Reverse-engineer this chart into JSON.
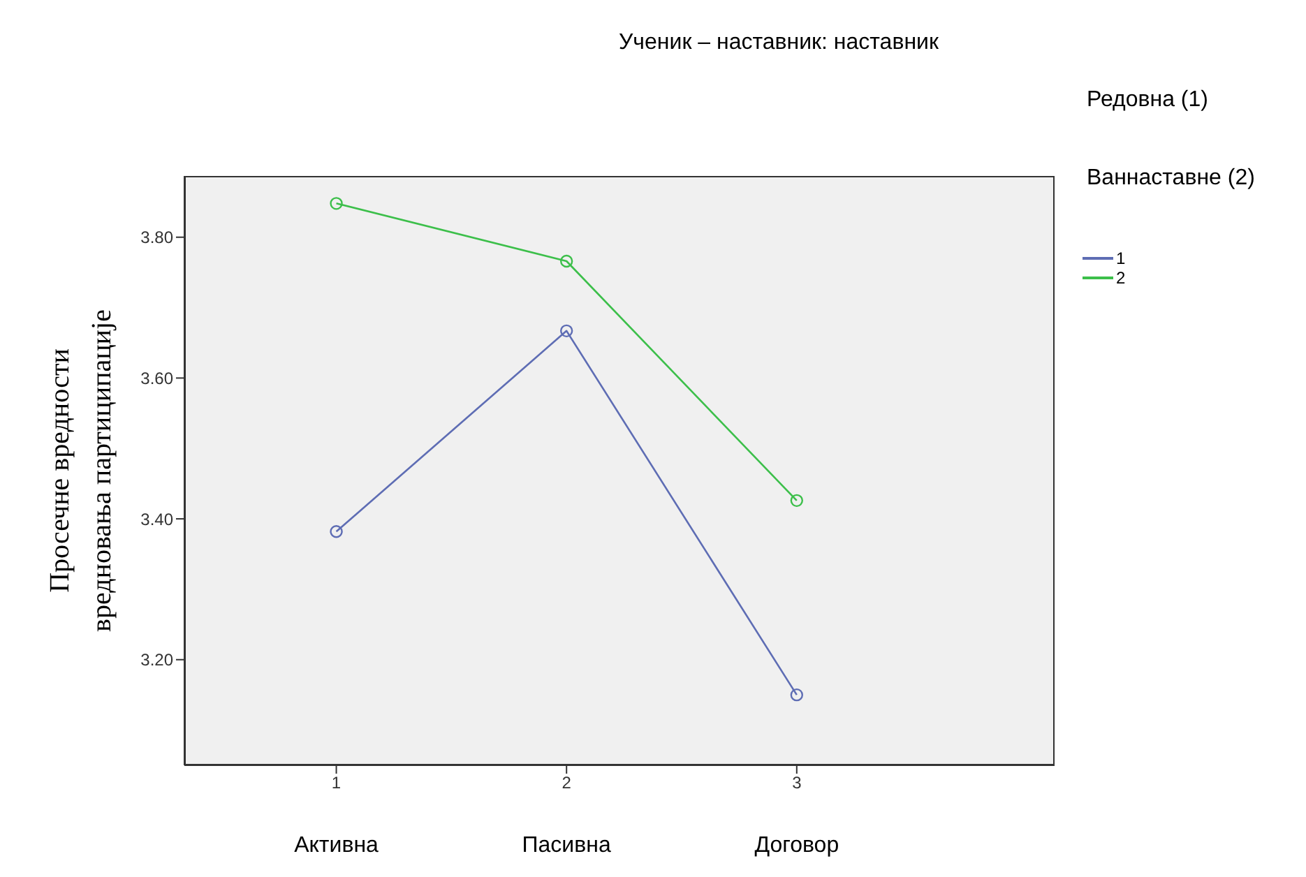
{
  "chart_data": {
    "type": "line",
    "title": "Ученик – наставник: наставник",
    "legend_title": "Редовна (1)\nВаннаставне (2)",
    "ylabel": "Просечне вредности\nвредновања партиципације",
    "x": [
      1,
      2,
      3
    ],
    "xlim": [
      0.34,
      4.12
    ],
    "xticks": [
      1,
      2,
      3
    ],
    "ylim": [
      3.05,
      3.887
    ],
    "yticks": [
      {
        "value": 3.2,
        "label": "3.20"
      },
      {
        "value": 3.4,
        "label": "3.40"
      },
      {
        "value": 3.6,
        "label": "3.60"
      },
      {
        "value": 3.8,
        "label": "3.80"
      }
    ],
    "series": [
      {
        "name": "1",
        "color": "#5e6db4",
        "values": [
          3.382,
          3.667,
          3.15
        ]
      },
      {
        "name": "2",
        "color": "#3cbf4a",
        "values": [
          3.848,
          3.766,
          3.426
        ]
      }
    ],
    "annotations": [
      "Активна",
      "Пасивна",
      "Договор"
    ],
    "marker": "circle",
    "line_style": "solid",
    "grid": false,
    "legend": "top right"
  }
}
